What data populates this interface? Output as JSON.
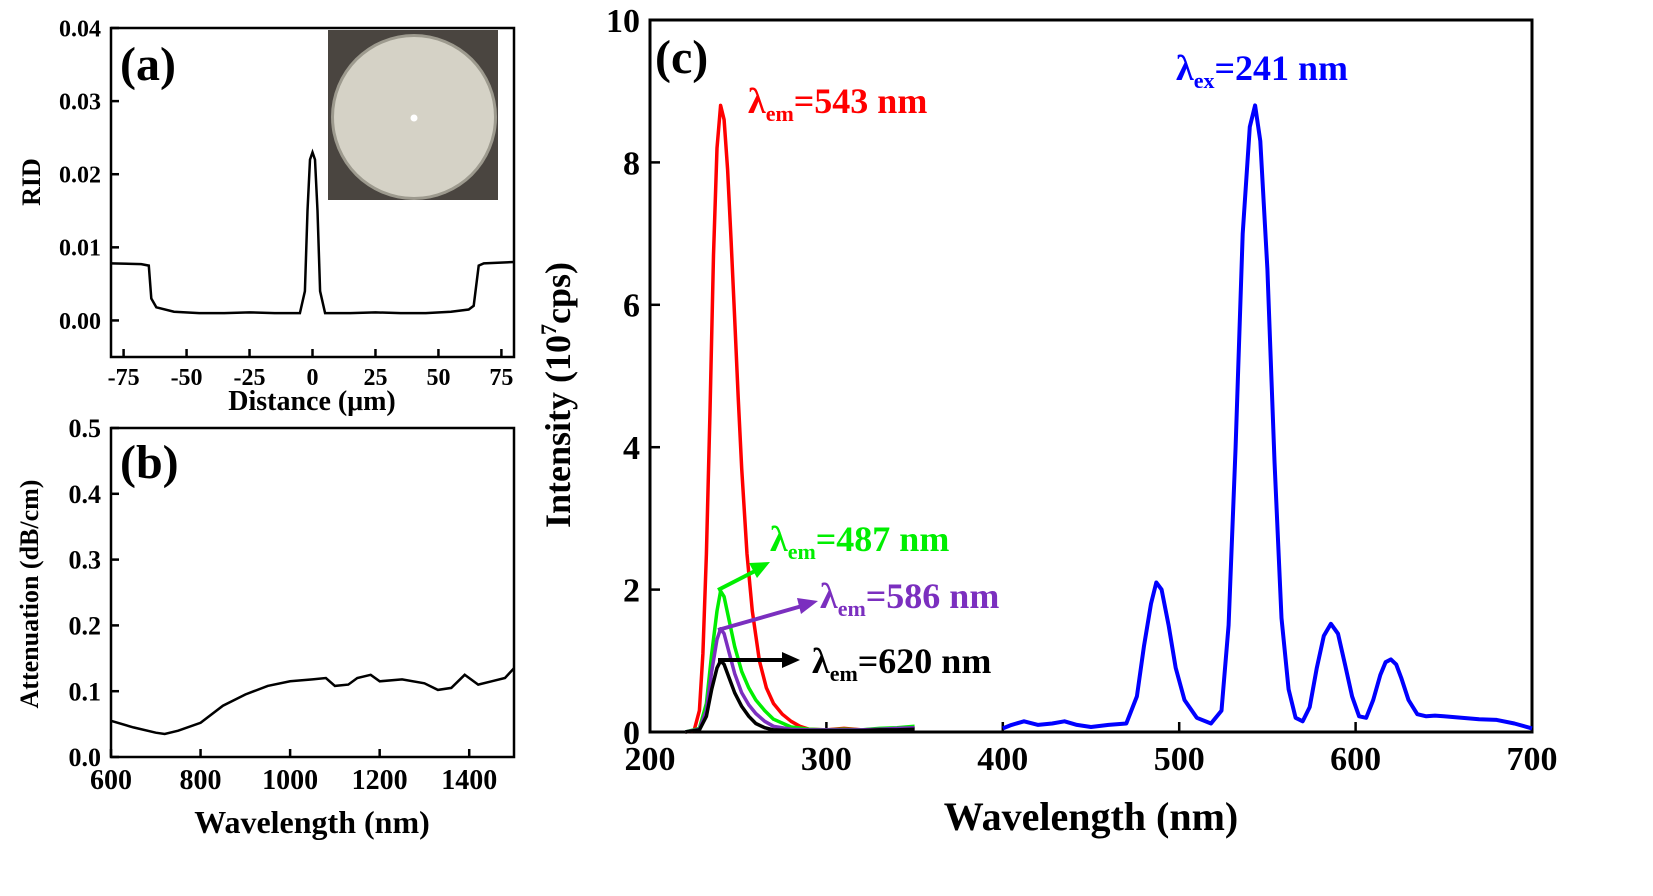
{
  "panels": {
    "a": {
      "label": "(a)",
      "ylabel": "RID",
      "xlabel": "Distance (μm)",
      "inset": "fiber-cross-section-photo"
    },
    "b": {
      "label": "(b)",
      "ylabel": "Attenuation (dB/cm)",
      "xlabel": "Wavelength (nm)"
    },
    "c": {
      "label": "(c)",
      "ylabel_main": "Intensity (10",
      "ylabel_sup": "7",
      "ylabel_tail": "cps)",
      "xlabel": "Wavelength (nm)",
      "ann_ex": {
        "sym": "λ",
        "sub": "ex",
        "text": "=241 nm"
      },
      "ann_543": {
        "sym": "λ",
        "sub": "em",
        "text": "=543 nm"
      },
      "ann_487": {
        "sym": "λ",
        "sub": "em",
        "text": "=487 nm"
      },
      "ann_586": {
        "sym": "λ",
        "sub": "em",
        "text": "=586 nm"
      },
      "ann_620": {
        "sym": "λ",
        "sub": "em",
        "text": "=620 nm"
      }
    }
  },
  "colors": {
    "axis": "#000000",
    "curve_a": "#000000",
    "curve_b": "#000000",
    "em543": "#ff0000",
    "em487": "#00ee00",
    "em586": "#7b2fbf",
    "em620": "#000000",
    "ex241": "#0000ff"
  },
  "chart_data": [
    {
      "id": "a",
      "type": "line",
      "xlabel": "Distance (μm)",
      "ylabel": "RID",
      "xlim": [
        -80,
        80
      ],
      "ylim": [
        -0.005,
        0.04
      ],
      "xticks": [
        -75,
        -50,
        -25,
        0,
        25,
        50,
        75
      ],
      "yticks": [
        0.0,
        0.01,
        0.02,
        0.03,
        0.04
      ],
      "ytick_labels": [
        "0.00",
        "0.01",
        "0.02",
        "0.03",
        "0.04"
      ],
      "series": [
        {
          "x": [
            -80,
            -68,
            -65,
            -64,
            -62,
            -55,
            -45,
            -35,
            -25,
            -15,
            -5,
            -3,
            -2,
            -1,
            0,
            1,
            2,
            3,
            5,
            15,
            25,
            35,
            45,
            55,
            62,
            64,
            66,
            68,
            80
          ],
          "y": [
            0.0078,
            0.0077,
            0.0075,
            0.003,
            0.0018,
            0.0012,
            0.001,
            0.001,
            0.0011,
            0.001,
            0.001,
            0.004,
            0.015,
            0.022,
            0.023,
            0.022,
            0.015,
            0.004,
            0.001,
            0.001,
            0.0011,
            0.001,
            0.001,
            0.0012,
            0.0015,
            0.002,
            0.0075,
            0.0078,
            0.008
          ]
        }
      ]
    },
    {
      "id": "b",
      "type": "line",
      "xlabel": "Wavelength (nm)",
      "ylabel": "Attenuation (dB/cm)",
      "xlim": [
        600,
        1500
      ],
      "ylim": [
        0.0,
        0.5
      ],
      "xticks": [
        600,
        800,
        1000,
        1200,
        1400
      ],
      "yticks": [
        0.0,
        0.1,
        0.2,
        0.3,
        0.4,
        0.5
      ],
      "ytick_labels": [
        "0.0",
        "0.1",
        "0.2",
        "0.3",
        "0.4",
        "0.5"
      ],
      "series": [
        {
          "x": [
            600,
            650,
            700,
            720,
            750,
            800,
            850,
            900,
            950,
            1000,
            1050,
            1080,
            1100,
            1130,
            1150,
            1180,
            1200,
            1250,
            1300,
            1330,
            1360,
            1390,
            1420,
            1450,
            1480,
            1500
          ],
          "y": [
            0.055,
            0.045,
            0.037,
            0.035,
            0.04,
            0.052,
            0.078,
            0.095,
            0.108,
            0.115,
            0.118,
            0.12,
            0.108,
            0.11,
            0.12,
            0.125,
            0.115,
            0.118,
            0.112,
            0.102,
            0.105,
            0.125,
            0.11,
            0.115,
            0.12,
            0.135
          ]
        }
      ]
    },
    {
      "id": "c",
      "type": "line",
      "xlabel": "Wavelength (nm)",
      "ylabel": "Intensity (10^7cps)",
      "xlim": [
        200,
        700
      ],
      "ylim": [
        0,
        10
      ],
      "xticks": [
        200,
        300,
        400,
        500,
        600,
        700
      ],
      "yticks": [
        0,
        2,
        4,
        6,
        8,
        10
      ],
      "series": [
        {
          "name": "λem=543 nm",
          "color": "#ff0000",
          "x": [
            220,
            225,
            228,
            230,
            232,
            234,
            236,
            238,
            240,
            242,
            244,
            246,
            248,
            250,
            252,
            255,
            258,
            262,
            266,
            270,
            275,
            280,
            285,
            290,
            300,
            310,
            320,
            330,
            340,
            350
          ],
          "y": [
            0,
            0.02,
            0.3,
            1.1,
            2.5,
            4.5,
            6.7,
            8.2,
            8.8,
            8.6,
            7.9,
            6.9,
            5.8,
            4.7,
            3.7,
            2.5,
            1.7,
            1.0,
            0.62,
            0.4,
            0.25,
            0.15,
            0.08,
            0.04,
            0.03,
            0.05,
            0.03,
            0.04,
            0.05,
            0.06
          ]
        },
        {
          "name": "λem=487 nm",
          "color": "#00ee00",
          "x": [
            220,
            228,
            232,
            235,
            238,
            240,
            242,
            245,
            248,
            252,
            256,
            260,
            265,
            270,
            280,
            290,
            300,
            310,
            320,
            330,
            340,
            350
          ],
          "y": [
            0,
            0.05,
            0.4,
            1.1,
            1.7,
            1.98,
            1.9,
            1.55,
            1.2,
            0.85,
            0.62,
            0.45,
            0.3,
            0.18,
            0.07,
            0.04,
            0.03,
            0.04,
            0.03,
            0.05,
            0.06,
            0.08
          ]
        },
        {
          "name": "λem=586 nm",
          "color": "#7b2fbf",
          "x": [
            220,
            228,
            232,
            235,
            238,
            240,
            242,
            245,
            248,
            252,
            256,
            260,
            265,
            270,
            280,
            290,
            300,
            310,
            320,
            330,
            340,
            350
          ],
          "y": [
            0,
            0.04,
            0.3,
            0.85,
            1.3,
            1.45,
            1.38,
            1.1,
            0.82,
            0.55,
            0.38,
            0.26,
            0.15,
            0.08,
            0.04,
            0.03,
            0.03,
            0.03,
            0.03,
            0.04,
            0.05,
            0.06
          ]
        },
        {
          "name": "λem=620 nm",
          "color": "#000000",
          "x": [
            220,
            228,
            232,
            235,
            238,
            240,
            242,
            245,
            248,
            252,
            256,
            260,
            265,
            270,
            280,
            290,
            300,
            310,
            320,
            330,
            340,
            350
          ],
          "y": [
            0,
            0.03,
            0.22,
            0.6,
            0.9,
            1.0,
            0.95,
            0.75,
            0.55,
            0.36,
            0.22,
            0.12,
            0.06,
            0.03,
            0.02,
            0.02,
            0.02,
            0.02,
            0.02,
            0.03,
            0.03,
            0.04
          ]
        },
        {
          "name": "λex=241 nm",
          "color": "#0000ff",
          "x": [
            400,
            405,
            412,
            420,
            428,
            435,
            442,
            450,
            460,
            470,
            476,
            480,
            484,
            487,
            490,
            494,
            498,
            503,
            510,
            518,
            524,
            528,
            532,
            536,
            540,
            543,
            546,
            550,
            554,
            558,
            562,
            566,
            570,
            574,
            578,
            582,
            586,
            590,
            594,
            598,
            602,
            606,
            610,
            614,
            617,
            620,
            623,
            626,
            630,
            635,
            640,
            645,
            650,
            660,
            670,
            680,
            690,
            700
          ],
          "y": [
            0.05,
            0.1,
            0.15,
            0.1,
            0.12,
            0.15,
            0.1,
            0.07,
            0.1,
            0.12,
            0.5,
            1.2,
            1.8,
            2.1,
            2.0,
            1.5,
            0.9,
            0.45,
            0.2,
            0.12,
            0.3,
            1.5,
            4.0,
            7.0,
            8.5,
            8.8,
            8.3,
            6.5,
            3.8,
            1.6,
            0.6,
            0.2,
            0.15,
            0.35,
            0.9,
            1.35,
            1.52,
            1.38,
            0.95,
            0.5,
            0.22,
            0.2,
            0.45,
            0.8,
            0.98,
            1.02,
            0.95,
            0.75,
            0.45,
            0.25,
            0.22,
            0.23,
            0.22,
            0.2,
            0.18,
            0.17,
            0.12,
            0.05
          ]
        }
      ]
    }
  ]
}
